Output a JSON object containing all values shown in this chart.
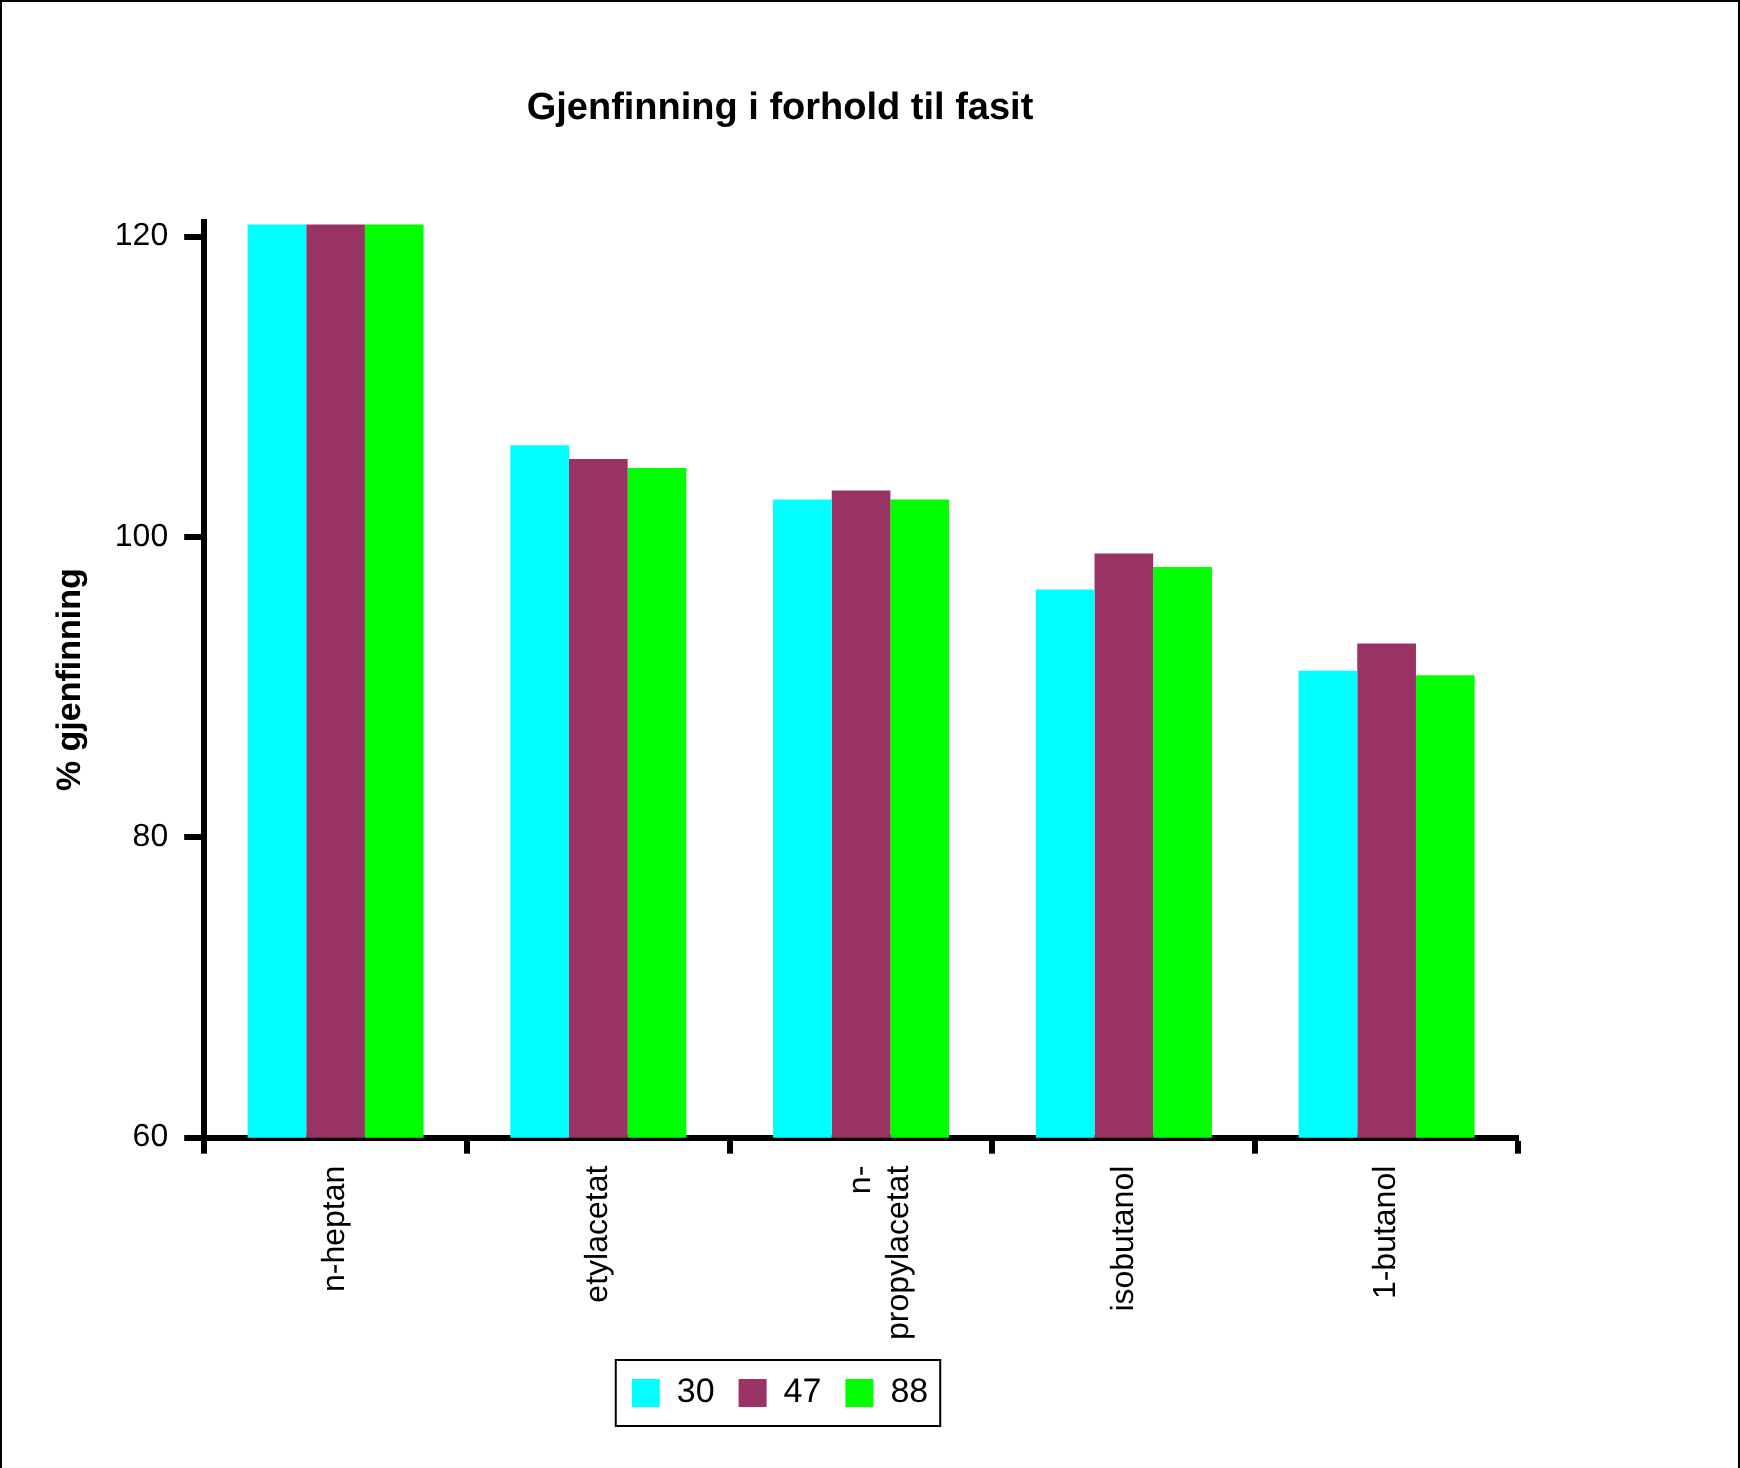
{
  "chart_data": {
    "type": "bar",
    "title": "Gjenfinning i forhold til fasit",
    "ylabel": "% gjenfinning",
    "categories": [
      "n-heptan",
      "etylacetat",
      "n-propylacetat",
      "isobutanol",
      "1-butanol"
    ],
    "series": [
      {
        "name": "30",
        "color": "#00ffff",
        "values": [
          120.8,
          106.1,
          102.5,
          96.5,
          91.1
        ]
      },
      {
        "name": "47",
        "color": "#993366",
        "values": [
          120.8,
          105.2,
          103.1,
          98.9,
          92.9
        ]
      },
      {
        "name": "88",
        "color": "#00ff00",
        "values": [
          120.8,
          104.6,
          102.5,
          98.0,
          90.8
        ]
      }
    ],
    "ylim": [
      60,
      121
    ],
    "yticks": [
      60,
      80,
      100,
      120
    ],
    "grid": false,
    "legend": "bottom"
  }
}
